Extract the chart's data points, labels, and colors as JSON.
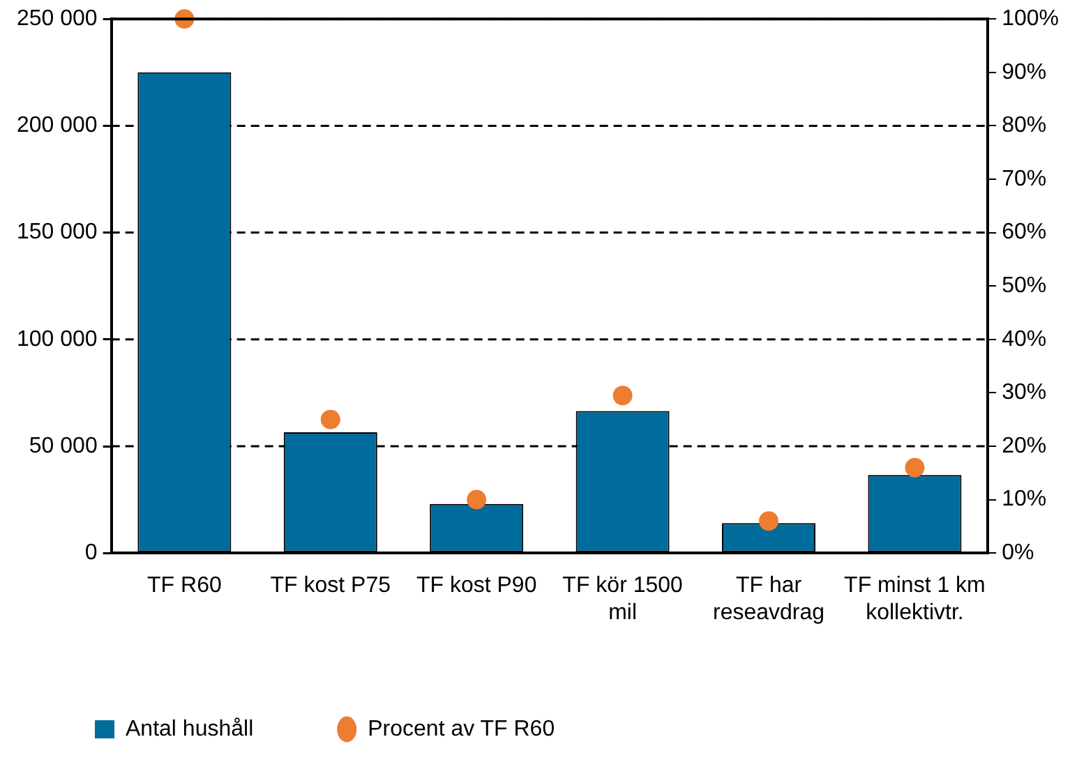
{
  "chart_data": {
    "type": "bar",
    "categories": [
      "TF R60",
      "TF kost P75",
      "TF kost P90",
      "TF kör 1500 mil",
      "TF har reseavdrag",
      "TF minst 1 km kollektivtr."
    ],
    "series": [
      {
        "name": "Antal hushåll",
        "color": "#006c9c",
        "values": [
          225000,
          56500,
          23000,
          66500,
          14000,
          36500
        ]
      },
      {
        "name": "Procent av TF R60",
        "type": "scatter",
        "axis": "y2",
        "color": "#ed7d31",
        "values": [
          100,
          25,
          10,
          29.5,
          6,
          16
        ],
        "marker": "circle"
      }
    ],
    "ylim": [
      0,
      250000
    ],
    "yticks": [
      {
        "value": 0,
        "label": "0"
      },
      {
        "value": 50000,
        "label": "50 000"
      },
      {
        "value": 100000,
        "label": "100 000"
      },
      {
        "value": 150000,
        "label": "150 000"
      },
      {
        "value": 200000,
        "label": "200 000"
      },
      {
        "value": 250000,
        "label": "250 000"
      }
    ],
    "y2lim": [
      0,
      100
    ],
    "y2ticks": [
      {
        "value": 0,
        "label": "0%"
      },
      {
        "value": 10,
        "label": "10%"
      },
      {
        "value": 20,
        "label": "20%"
      },
      {
        "value": 30,
        "label": "30%"
      },
      {
        "value": 40,
        "label": "40%"
      },
      {
        "value": 50,
        "label": "50%"
      },
      {
        "value": 60,
        "label": "60%"
      },
      {
        "value": 70,
        "label": "70%"
      },
      {
        "value": 80,
        "label": "80%"
      },
      {
        "value": 90,
        "label": "90%"
      },
      {
        "value": 100,
        "label": "100%"
      }
    ],
    "grid": "y",
    "line_style": "dashed",
    "legend": "bottom left"
  }
}
